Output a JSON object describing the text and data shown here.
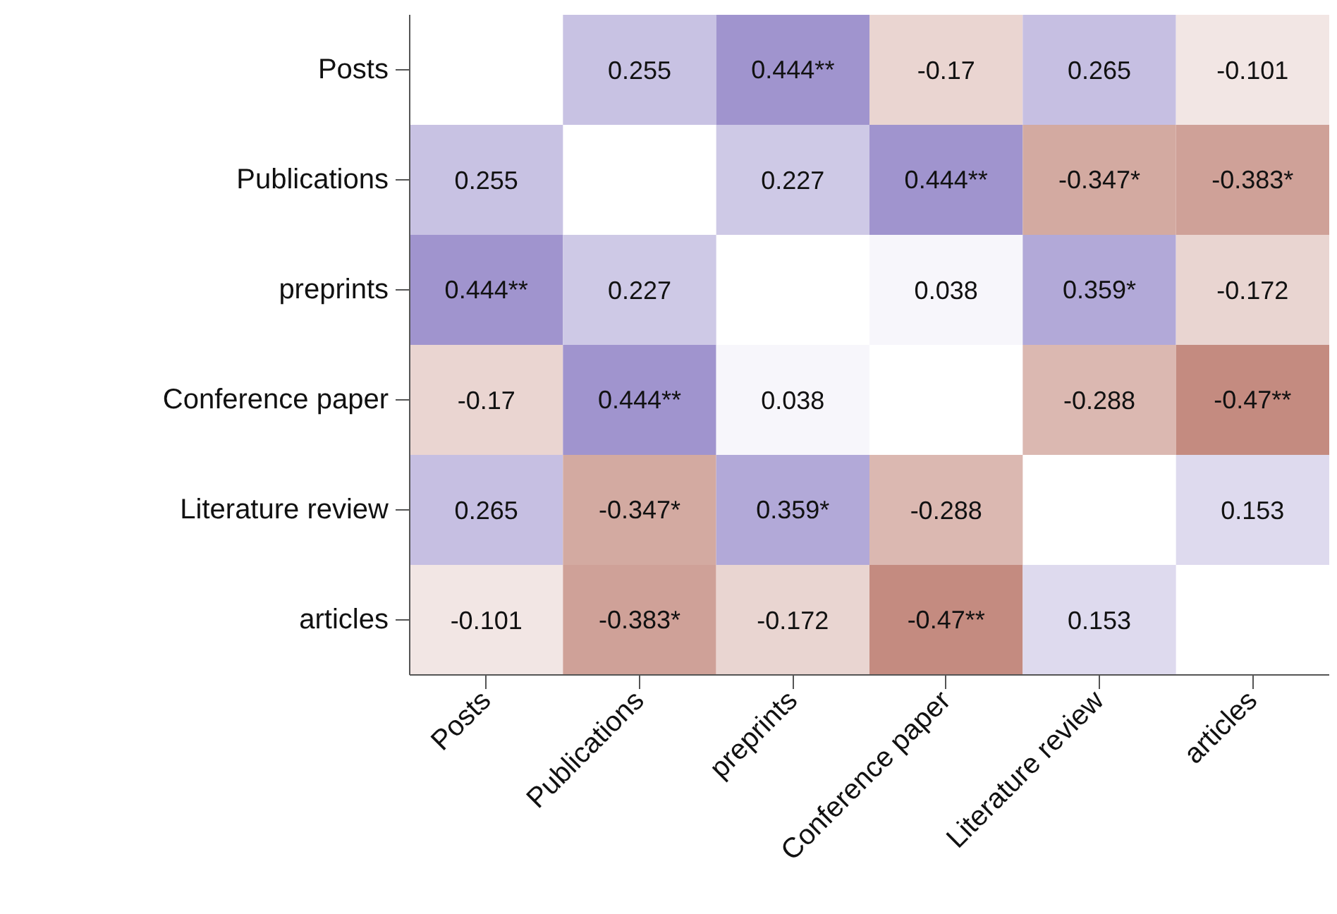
{
  "chart_data": {
    "type": "heatmap",
    "categories": [
      "Posts",
      "Publications",
      "preprints",
      "Conference paper",
      "Literature review",
      "articles"
    ],
    "y_categories": [
      "Posts",
      "Publications",
      "preprints",
      "Conference paper",
      "Literature review",
      "articles"
    ],
    "cells": [
      [
        null,
        0.255,
        0.444,
        -0.17,
        0.265,
        -0.101
      ],
      [
        0.255,
        null,
        0.227,
        0.444,
        -0.347,
        -0.383
      ],
      [
        0.444,
        0.227,
        null,
        0.038,
        0.359,
        -0.172
      ],
      [
        -0.17,
        0.444,
        0.038,
        null,
        -0.288,
        -0.47
      ],
      [
        0.265,
        -0.347,
        0.359,
        -0.288,
        null,
        0.153
      ],
      [
        -0.101,
        -0.383,
        -0.172,
        -0.47,
        0.153,
        null
      ]
    ],
    "cell_labels": [
      [
        null,
        "0.255",
        "0.444**",
        "-0.17",
        "0.265",
        "-0.101"
      ],
      [
        "0.255",
        null,
        "0.227",
        "0.444**",
        "-0.347*",
        "-0.383*"
      ],
      [
        "0.444**",
        "0.227",
        null,
        "0.038",
        "0.359*",
        "-0.172"
      ],
      [
        "-0.17",
        "0.444**",
        "0.038",
        null,
        "-0.288",
        "-0.47**"
      ],
      [
        "0.265",
        "-0.347*",
        "0.359*",
        "-0.288",
        null,
        "0.153"
      ],
      [
        "-0.101",
        "-0.383*",
        "-0.172",
        "-0.47**",
        "0.153",
        null
      ]
    ],
    "grid": false
  }
}
